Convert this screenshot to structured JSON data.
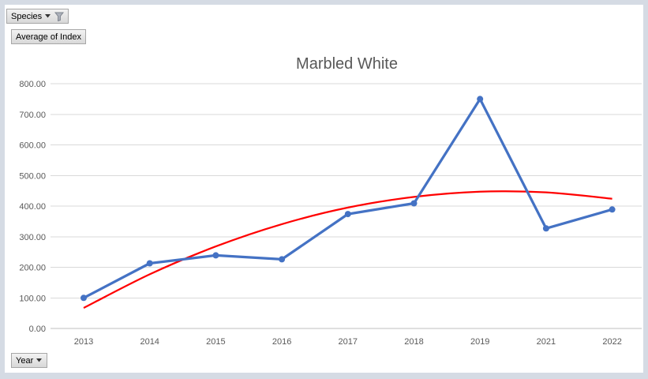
{
  "pivot_buttons": {
    "species": {
      "label": "Species"
    },
    "value": {
      "label": "Average of Index"
    },
    "axis": {
      "label": "Year"
    }
  },
  "icons": {
    "species_button": [
      "dropdown-arrow",
      "filter-funnel"
    ],
    "year_button": [
      "dropdown-arrow"
    ]
  },
  "colors": {
    "frame": "#D5DBE4",
    "series_blue": "#4472C4",
    "trendline_red": "#FF0000",
    "gridline": "#D9D9D9",
    "axis_line": "#BFBFBF",
    "tick_text": "#595959",
    "title_text": "#595959"
  },
  "chart_data": {
    "type": "line",
    "title": "Marbled White",
    "xlabel": "",
    "ylabel": "",
    "categories": [
      "2013",
      "2014",
      "2015",
      "2016",
      "2017",
      "2018",
      "2019",
      "2021",
      "2022"
    ],
    "series": [
      {
        "name": "Average of Index",
        "color": "#4472C4",
        "marker": "circle",
        "values": [
          100,
          213,
          239,
          226,
          374,
          409,
          750,
          327,
          389
        ]
      },
      {
        "name": "trendline",
        "color": "#FF0000",
        "smooth": true,
        "marker": "none",
        "values": [
          67,
          177,
          268,
          341,
          395,
          430,
          447,
          445,
          424
        ]
      }
    ],
    "ylim": [
      0,
      800
    ],
    "yticks": {
      "values": [
        0,
        100,
        200,
        300,
        400,
        500,
        600,
        700,
        800
      ],
      "labels": [
        "0.00",
        "100.00",
        "200.00",
        "300.00",
        "400.00",
        "500.00",
        "600.00",
        "700.00",
        "800.00"
      ]
    },
    "grid": true,
    "legend": "none"
  }
}
